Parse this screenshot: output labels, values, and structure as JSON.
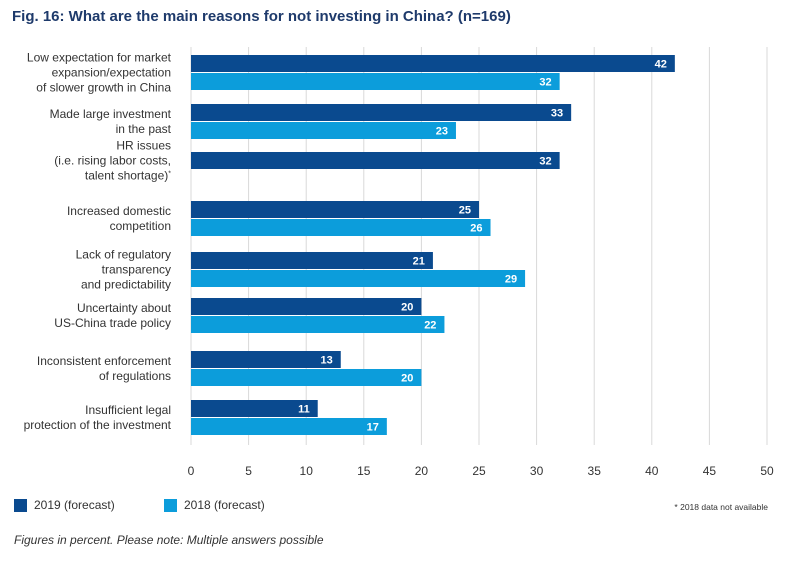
{
  "chart_data": {
    "type": "bar",
    "orientation": "horizontal",
    "title": "Fig. 16: What are the main reasons for not investing in China? (n=169)",
    "categories": [
      "Low expectation for market expansion/expectation of slower growth in China",
      "Made large investment in the past",
      "HR issues (i.e. rising labor costs, talent shortage)*",
      "Increased domestic competition",
      "Lack of regulatory transparency and predictability",
      "Uncertainty about US-China trade policy",
      "Inconsistent enforcement of regulations",
      "Insufficient legal protection of the investment"
    ],
    "category_lines": [
      [
        "Low expectation for market",
        "expansion/expectation",
        "of slower growth in China"
      ],
      [
        "Made large investment",
        "in the past"
      ],
      [
        "HR issues",
        "(i.e. rising labor costs,",
        "talent shortage)*"
      ],
      [
        "Increased domestic",
        "competition"
      ],
      [
        "Lack of regulatory",
        "transparency",
        "and predictability"
      ],
      [
        "Uncertainty about",
        "US-China trade policy"
      ],
      [
        "Inconsistent enforcement",
        "of regulations"
      ],
      [
        "Insufficient legal",
        "protection of the investment"
      ]
    ],
    "series": [
      {
        "name": "2019 (forecast)",
        "color": "#0a4a8f",
        "values": [
          42,
          33,
          32,
          25,
          21,
          20,
          13,
          11
        ]
      },
      {
        "name": "2018 (forecast)",
        "color": "#0c9ddb",
        "values": [
          32,
          23,
          null,
          26,
          29,
          22,
          20,
          17
        ]
      }
    ],
    "xlim": [
      0,
      50
    ],
    "xticks": [
      0,
      5,
      10,
      15,
      20,
      25,
      30,
      35,
      40,
      45,
      50
    ],
    "grid": true,
    "legend_position": "bottom-left",
    "xlabel": "",
    "ylabel": ""
  },
  "footnote": "* 2018 data not available",
  "caption": "Figures in percent. Please note: Multiple answers possible"
}
